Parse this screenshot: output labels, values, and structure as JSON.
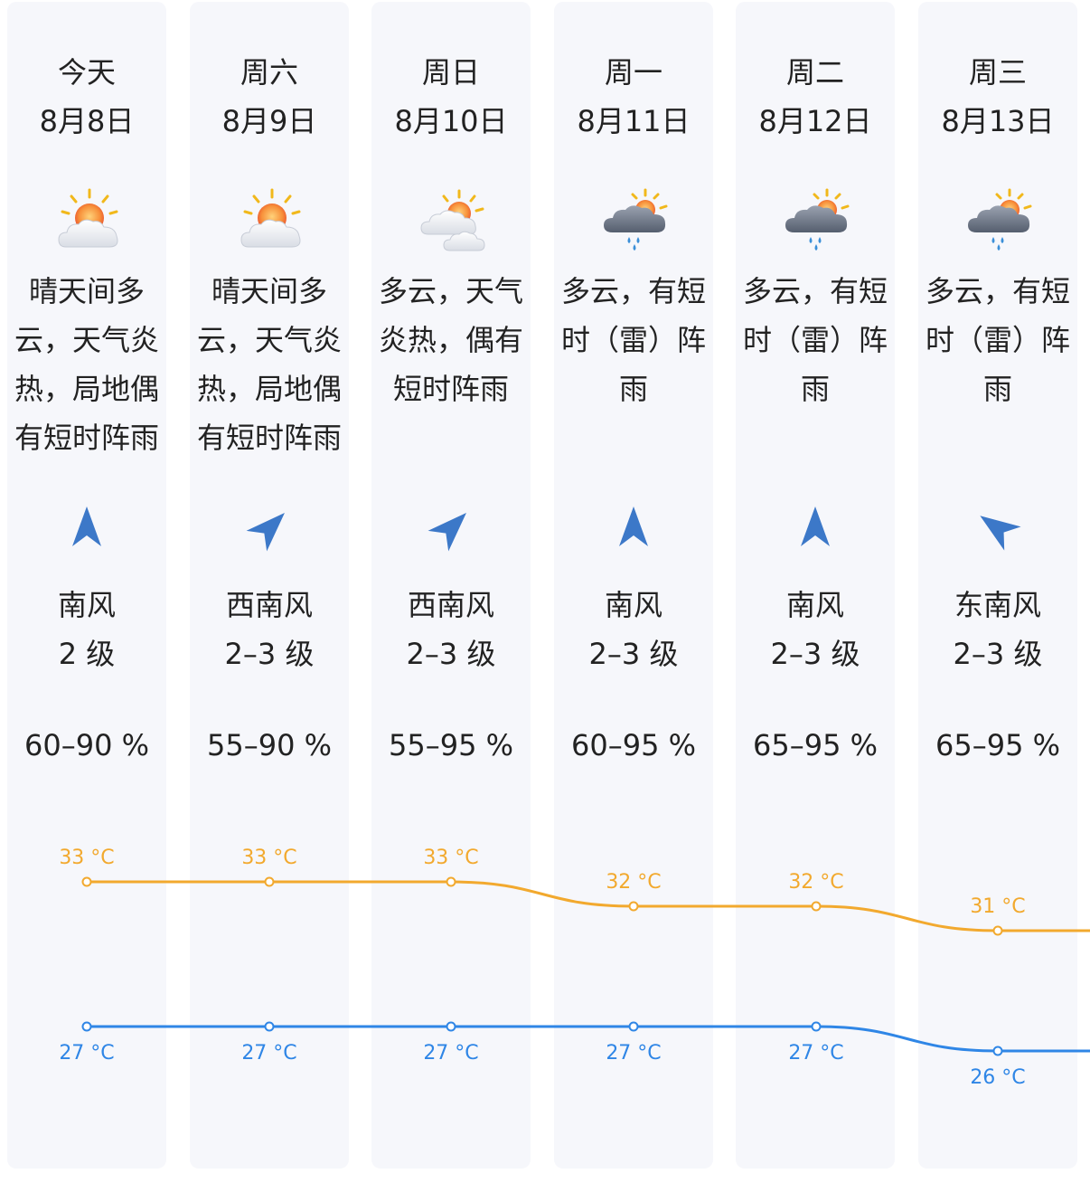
{
  "days": [
    {
      "day": "今天",
      "date": "8月8日",
      "icon": "sun-cloud-icon",
      "desc": "晴天间多云，天气炎热，局地偶有短时阵雨",
      "wind_arrow": "wind-south-arrow-icon",
      "wind_dir": "南风",
      "wind_level": "2 级",
      "humidity": "60–90 %",
      "high": "33 °C",
      "low": "27 °C"
    },
    {
      "day": "周六",
      "date": "8月9日",
      "icon": "sun-cloud-icon",
      "desc": "晴天间多云，天气炎热，局地偶有短时阵雨",
      "wind_arrow": "wind-southwest-arrow-icon",
      "wind_dir": "西南风",
      "wind_level": "2–3 级",
      "humidity": "55–90 %",
      "high": "33 °C",
      "low": "27 °C"
    },
    {
      "day": "周日",
      "date": "8月10日",
      "icon": "cloudy-sun-icon",
      "desc": "多云，天气炎热，偶有短时阵雨",
      "wind_arrow": "wind-southwest-arrow-icon",
      "wind_dir": "西南风",
      "wind_level": "2–3 级",
      "humidity": "55–95 %",
      "high": "33 °C",
      "low": "27 °C"
    },
    {
      "day": "周一",
      "date": "8月11日",
      "icon": "cloud-rain-sun-icon",
      "desc": "多云，有短时（雷）阵雨",
      "wind_arrow": "wind-south-arrow-icon",
      "wind_dir": "南风",
      "wind_level": "2–3 级",
      "humidity": "60–95 %",
      "high": "32 °C",
      "low": "27 °C"
    },
    {
      "day": "周二",
      "date": "8月12日",
      "icon": "cloud-rain-sun-icon",
      "desc": "多云，有短时（雷）阵雨",
      "wind_arrow": "wind-south-arrow-icon",
      "wind_dir": "南风",
      "wind_level": "2–3 级",
      "humidity": "65–95 %",
      "high": "32 °C",
      "low": "27 °C"
    },
    {
      "day": "周三",
      "date": "8月13日",
      "icon": "cloud-rain-sun-icon",
      "desc": "多云，有短时（雷）阵雨",
      "wind_arrow": "wind-southeast-arrow-icon",
      "wind_dir": "东南风",
      "wind_level": "2–3 级",
      "humidity": "65–95 %",
      "high": "31 °C",
      "low": "26 °C"
    }
  ],
  "temperature": {
    "high_values": [
      33,
      33,
      33,
      32,
      32,
      31
    ],
    "low_values": [
      27,
      27,
      27,
      27,
      27,
      26
    ],
    "high_color": "#f2a92e",
    "low_color": "#2f86e6"
  }
}
